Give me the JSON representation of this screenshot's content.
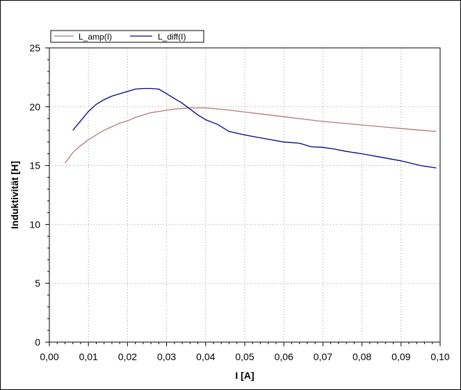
{
  "chart_data": {
    "type": "line",
    "xlabel": "I [A]",
    "ylabel": "Induktivität [H]",
    "xlim": [
      0.0,
      0.1
    ],
    "ylim": [
      0,
      25
    ],
    "x_ticks": [
      "0,00",
      "0,01",
      "0,02",
      "0,03",
      "0,04",
      "0,05",
      "0,06",
      "0,07",
      "0,08",
      "0,09",
      "0,10"
    ],
    "y_ticks": [
      "0",
      "5",
      "10",
      "15",
      "20",
      "25"
    ],
    "grid": true,
    "legend_position": "top-left",
    "series": [
      {
        "name": "L_amp(I)",
        "color": "#b07878",
        "x": [
          0.004,
          0.006,
          0.008,
          0.01,
          0.012,
          0.014,
          0.016,
          0.018,
          0.02,
          0.022,
          0.024,
          0.026,
          0.028,
          0.03,
          0.032,
          0.034,
          0.036,
          0.038,
          0.04,
          0.045,
          0.05,
          0.055,
          0.06,
          0.065,
          0.07,
          0.075,
          0.08,
          0.085,
          0.09,
          0.095,
          0.099
        ],
        "y": [
          15.2,
          16.1,
          16.7,
          17.2,
          17.6,
          18.0,
          18.3,
          18.6,
          18.8,
          19.1,
          19.3,
          19.5,
          19.6,
          19.7,
          19.8,
          19.85,
          19.9,
          19.9,
          19.9,
          19.75,
          19.55,
          19.35,
          19.15,
          18.95,
          18.75,
          18.6,
          18.45,
          18.3,
          18.15,
          18.0,
          17.9
        ]
      },
      {
        "name": "L_diff(I)",
        "color": "#000080",
        "x": [
          0.006,
          0.008,
          0.01,
          0.012,
          0.014,
          0.016,
          0.018,
          0.02,
          0.022,
          0.024,
          0.026,
          0.028,
          0.03,
          0.032,
          0.034,
          0.036,
          0.038,
          0.04,
          0.043,
          0.046,
          0.05,
          0.055,
          0.06,
          0.064,
          0.067,
          0.07,
          0.073,
          0.076,
          0.08,
          0.085,
          0.09,
          0.095,
          0.099
        ],
        "y": [
          18.0,
          18.8,
          19.6,
          20.2,
          20.6,
          20.9,
          21.1,
          21.3,
          21.5,
          21.55,
          21.55,
          21.5,
          21.1,
          20.7,
          20.3,
          19.8,
          19.3,
          18.9,
          18.5,
          17.9,
          17.6,
          17.3,
          17.0,
          16.9,
          16.6,
          16.55,
          16.4,
          16.2,
          16.0,
          15.7,
          15.4,
          15.0,
          14.8
        ]
      }
    ]
  }
}
